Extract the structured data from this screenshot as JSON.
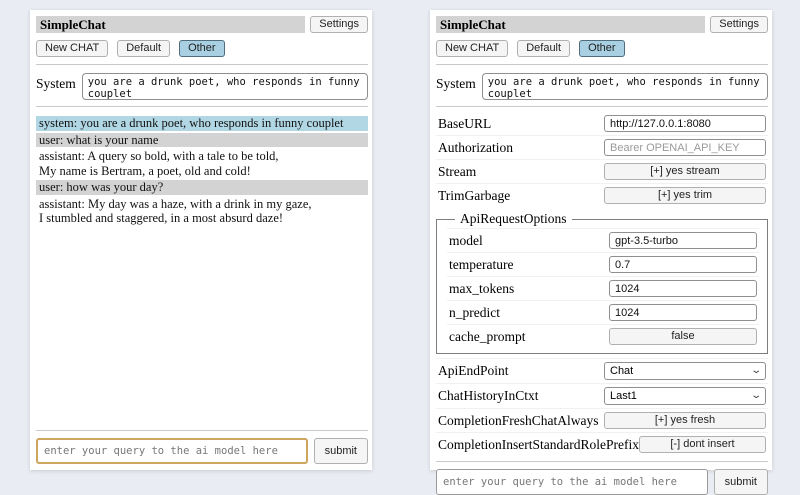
{
  "app": {
    "title": "SimpleChat",
    "settings_button": "Settings"
  },
  "tabs": {
    "new_chat": "New CHAT",
    "session_default": "Default",
    "session_other": "Other"
  },
  "system_prompt": {
    "label": "System",
    "value": "you are a drunk poet, who responds in funny couplet"
  },
  "chat": {
    "messages": [
      {
        "role": "system",
        "text": "system: you are a drunk poet, who responds in funny couplet"
      },
      {
        "role": "user",
        "text": "user: what is your name"
      },
      {
        "role": "assistant",
        "text": "assistant: A query so bold, with a tale to be told,\nMy name is Bertram, a poet, old and cold!"
      },
      {
        "role": "user",
        "text": "user: how was your day?"
      },
      {
        "role": "assistant",
        "text": "assistant: My day was a haze, with a drink in my gaze,\nI stumbled and staggered, in a most absurd daze!"
      }
    ]
  },
  "query": {
    "placeholder": "enter your query to the ai model here",
    "submit_label": "submit"
  },
  "settings": {
    "base_url": {
      "label": "BaseURL",
      "value": "http://127.0.0.1:8080"
    },
    "authorization": {
      "label": "Authorization",
      "placeholder": "Bearer OPENAI_API_KEY"
    },
    "stream": {
      "label": "Stream",
      "button": "[+] yes stream"
    },
    "trim_garbage": {
      "label": "TrimGarbage",
      "button": "[+] yes trim"
    },
    "api_request_options": {
      "legend": "ApiRequestOptions",
      "model": {
        "label": "model",
        "value": "gpt-3.5-turbo"
      },
      "temperature": {
        "label": "temperature",
        "value": "0.7"
      },
      "max_tokens": {
        "label": "max_tokens",
        "value": "1024"
      },
      "n_predict": {
        "label": "n_predict",
        "value": "1024"
      },
      "cache_prompt": {
        "label": "cache_prompt",
        "button": "false"
      }
    },
    "api_endpoint": {
      "label": "ApiEndPoint",
      "value": "Chat"
    },
    "chat_history_in_ctxt": {
      "label": "ChatHistoryInCtxt",
      "value": "Last1"
    },
    "completion_fresh_chat_always": {
      "label": "CompletionFreshChatAlways",
      "button": "[+] yes fresh"
    },
    "completion_insert_standard_role_prefix": {
      "label": "CompletionInsertStandardRolePrefix",
      "button": "[-] dont insert"
    }
  },
  "colors": {
    "page_bg": "#e9edf3",
    "panel_bg": "#ffffff",
    "titlebar_bg": "#d3d3d3",
    "system_msg_bg": "#b2d7e4",
    "user_msg_bg": "#d3d3d3",
    "selected_tab_bg": "#a9cfe2",
    "query_focus_border": "#cda55e"
  }
}
